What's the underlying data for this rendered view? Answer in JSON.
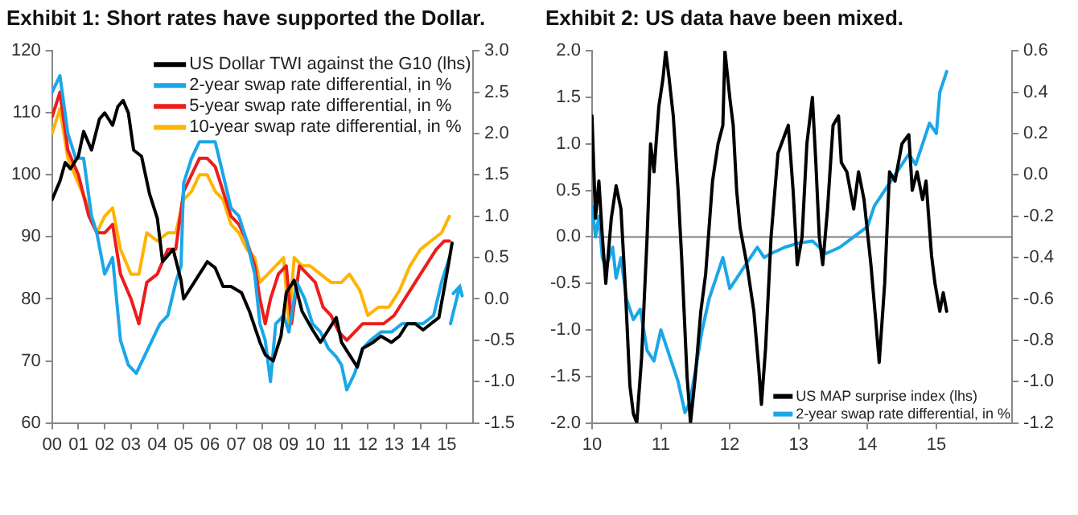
{
  "chart_data": [
    {
      "type": "line",
      "title": "Exhibit 1: Short rates have supported the Dollar.",
      "legend": "top right",
      "xlim": [
        0,
        16
      ],
      "xticks": [
        {
          "value": 0,
          "label": "00"
        },
        {
          "value": 1,
          "label": "01"
        },
        {
          "value": 2,
          "label": "02"
        },
        {
          "value": 3,
          "label": "03"
        },
        {
          "value": 4,
          "label": "04"
        },
        {
          "value": 5,
          "label": "05"
        },
        {
          "value": 6,
          "label": "06"
        },
        {
          "value": 7,
          "label": "07"
        },
        {
          "value": 8,
          "label": "08"
        },
        {
          "value": 9,
          "label": "09"
        },
        {
          "value": 10,
          "label": "10"
        },
        {
          "value": 11,
          "label": "11"
        },
        {
          "value": 12,
          "label": "12"
        },
        {
          "value": 13,
          "label": "13"
        },
        {
          "value": 14,
          "label": "14"
        },
        {
          "value": 15,
          "label": "15"
        }
      ],
      "ylim": [
        60,
        120
      ],
      "yticks": [
        60,
        70,
        80,
        90,
        100,
        110,
        120
      ],
      "y2lim": [
        -1.5,
        3.0
      ],
      "y2ticks": [
        {
          "value": -1.5,
          "label": "-1.5"
        },
        {
          "value": -1,
          "label": "-1.0"
        },
        {
          "value": -0.5,
          "label": "-0.5"
        },
        {
          "value": 0,
          "label": "0.0"
        },
        {
          "value": 0.5,
          "label": "0.5"
        },
        {
          "value": 1,
          "label": "1.0"
        },
        {
          "value": 1.5,
          "label": "1.5"
        },
        {
          "value": 2,
          "label": "2.0"
        },
        {
          "value": 2.5,
          "label": "2.5"
        },
        {
          "value": 3,
          "label": "3.0"
        }
      ],
      "series": [
        {
          "name": "US Dollar TWI against the G10 (lhs)",
          "color": "#000000",
          "x": [
            0,
            0.3,
            0.5,
            0.7,
            1,
            1.2,
            1.5,
            1.8,
            2,
            2.3,
            2.5,
            2.7,
            2.9,
            3.1,
            3.4,
            3.7,
            4,
            4.2,
            4.6,
            4.9,
            5,
            5.3,
            5.6,
            5.9,
            6.2,
            6.5,
            6.8,
            7.2,
            7.5,
            7.9,
            8.1,
            8.4,
            8.7,
            8.9,
            9.2,
            9.5,
            9.9,
            10.2,
            10.5,
            10.8,
            11,
            11.3,
            11.6,
            11.8,
            12.2,
            12.5,
            12.9,
            13.2,
            13.5,
            13.8,
            14.1,
            14.4,
            14.7,
            15,
            15.2
          ],
          "values": [
            96,
            99,
            102,
            101,
            103,
            107,
            104,
            109,
            110,
            108,
            111,
            112,
            110,
            104,
            103,
            97,
            93,
            86,
            88,
            83,
            80,
            82,
            84,
            86,
            85,
            82,
            82,
            81,
            78,
            73,
            71,
            70,
            74,
            81,
            83,
            78,
            75,
            73,
            75,
            77,
            73,
            71,
            69,
            72,
            73,
            74,
            73,
            74,
            76,
            76,
            75,
            76,
            77,
            84,
            89
          ]
        },
        {
          "name": "2-year swap rate differential, in %",
          "color": "#1aa7e8",
          "axis": "y2",
          "x": [
            0,
            0.3,
            0.6,
            0.9,
            1.2,
            1.5,
            1.7,
            2,
            2.3,
            2.6,
            2.9,
            3.2,
            3.5,
            3.8,
            4.1,
            4.4,
            4.7,
            4.9,
            5,
            5.3,
            5.6,
            5.9,
            6.2,
            6.5,
            6.8,
            7.1,
            7.4,
            7.7,
            7.9,
            8.1,
            8.3,
            8.5,
            8.8,
            9,
            9.3,
            9.6,
            9.9,
            10.2,
            10.5,
            10.8,
            11,
            11.2,
            11.5,
            11.8,
            12.1,
            12.5,
            12.9,
            13.3,
            13.7,
            14.1,
            14.5,
            14.8,
            15.1
          ],
          "values": [
            2.5,
            2.7,
            2.0,
            1.7,
            1.7,
            1.0,
            0.8,
            0.3,
            0.5,
            -0.5,
            -0.8,
            -0.9,
            -0.7,
            -0.5,
            -0.3,
            -0.2,
            0.2,
            0.4,
            1.4,
            1.7,
            1.9,
            1.9,
            1.9,
            1.5,
            1.1,
            1.0,
            0.7,
            0.3,
            -0.3,
            -0.5,
            -1.0,
            -0.3,
            -0.2,
            -0.4,
            0.2,
            0.0,
            -0.3,
            -0.4,
            -0.6,
            -0.7,
            -0.8,
            -1.1,
            -0.9,
            -0.6,
            -0.5,
            -0.4,
            -0.4,
            -0.3,
            -0.3,
            -0.3,
            -0.2,
            0.2,
            0.5
          ]
        },
        {
          "name": "5-year swap rate differential, in %",
          "color": "#ee1c1c",
          "axis": "y2",
          "x": [
            0,
            0.3,
            0.6,
            1,
            1.4,
            1.7,
            2,
            2.3,
            2.6,
            3,
            3.3,
            3.6,
            4,
            4.4,
            4.7,
            5,
            5.3,
            5.6,
            5.9,
            6.2,
            6.5,
            6.8,
            7.1,
            7.4,
            7.7,
            7.9,
            8.1,
            8.3,
            8.6,
            8.9,
            9.1,
            9.4,
            9.7,
            10,
            10.3,
            10.6,
            10.9,
            11.2,
            11.5,
            11.8,
            12.2,
            12.6,
            13,
            13.4,
            13.8,
            14.2,
            14.6,
            14.9,
            15.1
          ],
          "values": [
            2.2,
            2.5,
            1.8,
            1.5,
            1.0,
            0.8,
            0.8,
            0.9,
            0.3,
            0.0,
            -0.3,
            0.2,
            0.3,
            0.6,
            0.6,
            1.3,
            1.5,
            1.7,
            1.7,
            1.6,
            1.3,
            1.0,
            0.9,
            0.7,
            0.4,
            0.0,
            -0.3,
            0.0,
            0.3,
            0.4,
            -0.3,
            0.4,
            0.3,
            0.2,
            -0.1,
            -0.2,
            -0.4,
            -0.5,
            -0.4,
            -0.3,
            -0.3,
            -0.3,
            -0.2,
            0.0,
            0.2,
            0.4,
            0.6,
            0.7,
            0.7
          ]
        },
        {
          "name": "10-year swap rate differential, in %",
          "color": "#ffb400",
          "axis": "y2",
          "x": [
            0,
            0.3,
            0.6,
            1,
            1.4,
            1.7,
            2,
            2.3,
            2.6,
            3,
            3.3,
            3.6,
            4,
            4.4,
            4.7,
            5,
            5.3,
            5.6,
            5.9,
            6.2,
            6.5,
            6.8,
            7.1,
            7.4,
            7.7,
            7.9,
            8.2,
            8.5,
            8.8,
            9,
            9.2,
            9.5,
            9.8,
            10.2,
            10.6,
            11,
            11.3,
            11.7,
            12,
            12.4,
            12.8,
            13.2,
            13.6,
            14,
            14.4,
            14.8,
            15.1
          ],
          "values": [
            2.0,
            2.3,
            1.7,
            1.4,
            1.1,
            0.8,
            1.0,
            1.1,
            0.6,
            0.3,
            0.3,
            0.8,
            0.7,
            0.8,
            0.8,
            1.2,
            1.3,
            1.5,
            1.5,
            1.3,
            1.2,
            0.9,
            0.8,
            0.6,
            0.5,
            0.2,
            0.3,
            0.4,
            0.5,
            -0.3,
            0.5,
            0.4,
            0.4,
            0.3,
            0.2,
            0.2,
            0.3,
            0.1,
            -0.2,
            -0.1,
            -0.1,
            0.1,
            0.4,
            0.6,
            0.7,
            0.8,
            1.0
          ]
        }
      ]
    },
    {
      "type": "line",
      "title": "Exhibit 2: US data have been mixed.",
      "legend": "bottom right",
      "xlim": [
        10,
        16.1
      ],
      "xticks": [
        10,
        11,
        12,
        13,
        14,
        15
      ],
      "ylim": [
        -2,
        2
      ],
      "yticks": [
        {
          "value": -2,
          "label": "-2.0"
        },
        {
          "value": -1.5,
          "label": "-1.5"
        },
        {
          "value": -1,
          "label": "-1.0"
        },
        {
          "value": -0.5,
          "label": "-0.5"
        },
        {
          "value": 0,
          "label": "0.0"
        },
        {
          "value": 0.5,
          "label": "0.5"
        },
        {
          "value": 1,
          "label": "1.0"
        },
        {
          "value": 1.5,
          "label": "1.5"
        },
        {
          "value": 2,
          "label": "2.0"
        }
      ],
      "y2lim": [
        -1.2,
        0.6
      ],
      "y2ticks": [
        -1.2,
        {
          "value": -1,
          "label": "-1.0"
        },
        -0.8,
        -0.6,
        -0.4,
        -0.2,
        {
          "value": 0,
          "label": "0.0"
        },
        0.2,
        0.4,
        0.6
      ],
      "ref_lines": [
        {
          "axis": "y",
          "value": 0,
          "color": "#808080"
        }
      ],
      "series": [
        {
          "name": "US MAP surprise index (lhs)",
          "color": "#000000",
          "x": [
            10,
            10.05,
            10.1,
            10.15,
            10.2,
            10.28,
            10.35,
            10.42,
            10.48,
            10.55,
            10.6,
            10.65,
            10.72,
            10.8,
            10.85,
            10.9,
            10.97,
            11.03,
            11.07,
            11.12,
            11.18,
            11.25,
            11.3,
            11.38,
            11.43,
            11.5,
            11.58,
            11.65,
            11.75,
            11.83,
            11.9,
            11.93,
            12,
            12.05,
            12.1,
            12.15,
            12.25,
            12.35,
            12.42,
            12.46,
            12.52,
            12.6,
            12.7,
            12.8,
            12.85,
            12.92,
            12.98,
            13.05,
            13.12,
            13.2,
            13.25,
            13.3,
            13.35,
            13.42,
            13.5,
            13.58,
            13.62,
            13.7,
            13.8,
            13.87,
            13.95,
            14.05,
            14.12,
            14.17,
            14.25,
            14.32,
            14.4,
            14.5,
            14.6,
            14.65,
            14.72,
            14.8,
            14.85,
            14.93,
            14.98,
            15.05,
            15.1,
            15.15
          ],
          "values": [
            1.3,
            0.2,
            0.6,
            0.0,
            -0.5,
            0.2,
            0.55,
            0.3,
            -0.5,
            -1.6,
            -1.9,
            -2.0,
            -1.3,
            0.0,
            1.0,
            0.7,
            1.4,
            1.7,
            2.0,
            1.7,
            1.3,
            0.5,
            -0.2,
            -1.5,
            -2.0,
            -1.5,
            -0.8,
            -0.4,
            0.6,
            1.0,
            1.2,
            2.0,
            1.5,
            1.2,
            0.5,
            0.1,
            -0.3,
            -0.8,
            -1.4,
            -1.8,
            -1.2,
            0.0,
            0.9,
            1.1,
            1.2,
            0.5,
            -0.3,
            0.0,
            1.0,
            1.5,
            0.8,
            0.0,
            -0.3,
            0.3,
            1.2,
            1.3,
            0.8,
            0.7,
            0.3,
            0.7,
            0.4,
            -0.3,
            -0.9,
            -1.35,
            -0.5,
            0.7,
            0.6,
            1.0,
            1.1,
            0.5,
            0.7,
            0.4,
            0.6,
            -0.2,
            -0.5,
            -0.8,
            -0.6,
            -0.8
          ]
        },
        {
          "name": "2-year swap rate differential, in %",
          "color": "#1aa7e8",
          "axis": "y2",
          "x": [
            10,
            10.05,
            10.1,
            10.15,
            10.2,
            10.3,
            10.35,
            10.42,
            10.5,
            10.6,
            10.7,
            10.8,
            10.9,
            11,
            11.05,
            11.15,
            11.25,
            11.35,
            11.42,
            11.5,
            11.6,
            11.7,
            11.8,
            11.9,
            12,
            12.1,
            12.2,
            12.3,
            12.4,
            12.5,
            12.6,
            12.8,
            13,
            13.2,
            13.4,
            13.6,
            13.8,
            14,
            14.1,
            14.2,
            14.3,
            14.4,
            14.5,
            14.6,
            14.7,
            14.8,
            14.9,
            15,
            15.05,
            15.15
          ],
          "values": [
            -0.15,
            -0.3,
            -0.2,
            -0.4,
            -0.45,
            -0.35,
            -0.5,
            -0.4,
            -0.6,
            -0.7,
            -0.65,
            -0.85,
            -0.9,
            -0.75,
            -0.8,
            -0.9,
            -1.0,
            -1.15,
            -1.1,
            -0.95,
            -0.75,
            -0.6,
            -0.5,
            -0.4,
            -0.55,
            -0.5,
            -0.45,
            -0.4,
            -0.35,
            -0.4,
            -0.38,
            -0.35,
            -0.33,
            -0.32,
            -0.38,
            -0.35,
            -0.3,
            -0.25,
            -0.15,
            -0.1,
            -0.05,
            0.0,
            0.05,
            0.1,
            0.05,
            0.15,
            0.25,
            0.2,
            0.4,
            0.5
          ]
        }
      ]
    }
  ]
}
